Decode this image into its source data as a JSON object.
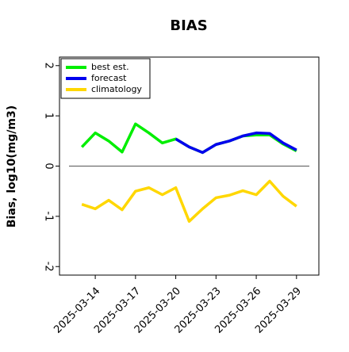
{
  "chart_data": {
    "type": "line",
    "title": "BIAS",
    "ylabel": "Bias, log10(mg/m3)",
    "x": [
      "2025-03-13",
      "2025-03-14",
      "2025-03-15",
      "2025-03-16",
      "2025-03-17",
      "2025-03-18",
      "2025-03-19",
      "2025-03-20",
      "2025-03-21",
      "2025-03-22",
      "2025-03-23",
      "2025-03-24",
      "2025-03-25",
      "2025-03-26",
      "2025-03-27",
      "2025-03-28",
      "2025-03-29"
    ],
    "series": [
      {
        "name": "best est.",
        "color": "#00ee00",
        "values": [
          0.38,
          0.66,
          0.5,
          0.28,
          0.84,
          0.66,
          0.46,
          0.54,
          0.38,
          0.27,
          0.43,
          0.5,
          0.6,
          0.62,
          0.62,
          0.44,
          0.3
        ]
      },
      {
        "name": "forecast",
        "color": "#0000ee",
        "values": [
          null,
          null,
          null,
          null,
          null,
          null,
          null,
          0.54,
          0.38,
          0.27,
          0.43,
          0.5,
          0.6,
          0.66,
          0.65,
          0.46,
          0.32
        ]
      },
      {
        "name": "climatology",
        "color": "#ffd700",
        "values": [
          -0.76,
          -0.85,
          -0.68,
          -0.87,
          -0.5,
          -0.43,
          -0.57,
          -0.43,
          -1.1,
          -0.85,
          -0.63,
          -0.58,
          -0.49,
          -0.57,
          -0.3,
          -0.6,
          -0.8
        ]
      }
    ],
    "xlim": [
      "2025-03-11T08:00",
      "2025-03-30T16:00"
    ],
    "xticks": [
      "2025-03-14",
      "2025-03-17",
      "2025-03-20",
      "2025-03-23",
      "2025-03-26",
      "2025-03-29"
    ],
    "highlight_xtick": "2025-03-20",
    "highlight_color": "#228b22",
    "ylim": [
      -2.17,
      2.17
    ],
    "yticks": [
      -2,
      -1,
      0,
      1,
      2
    ],
    "zero_line": 0,
    "legend": "upper left"
  }
}
